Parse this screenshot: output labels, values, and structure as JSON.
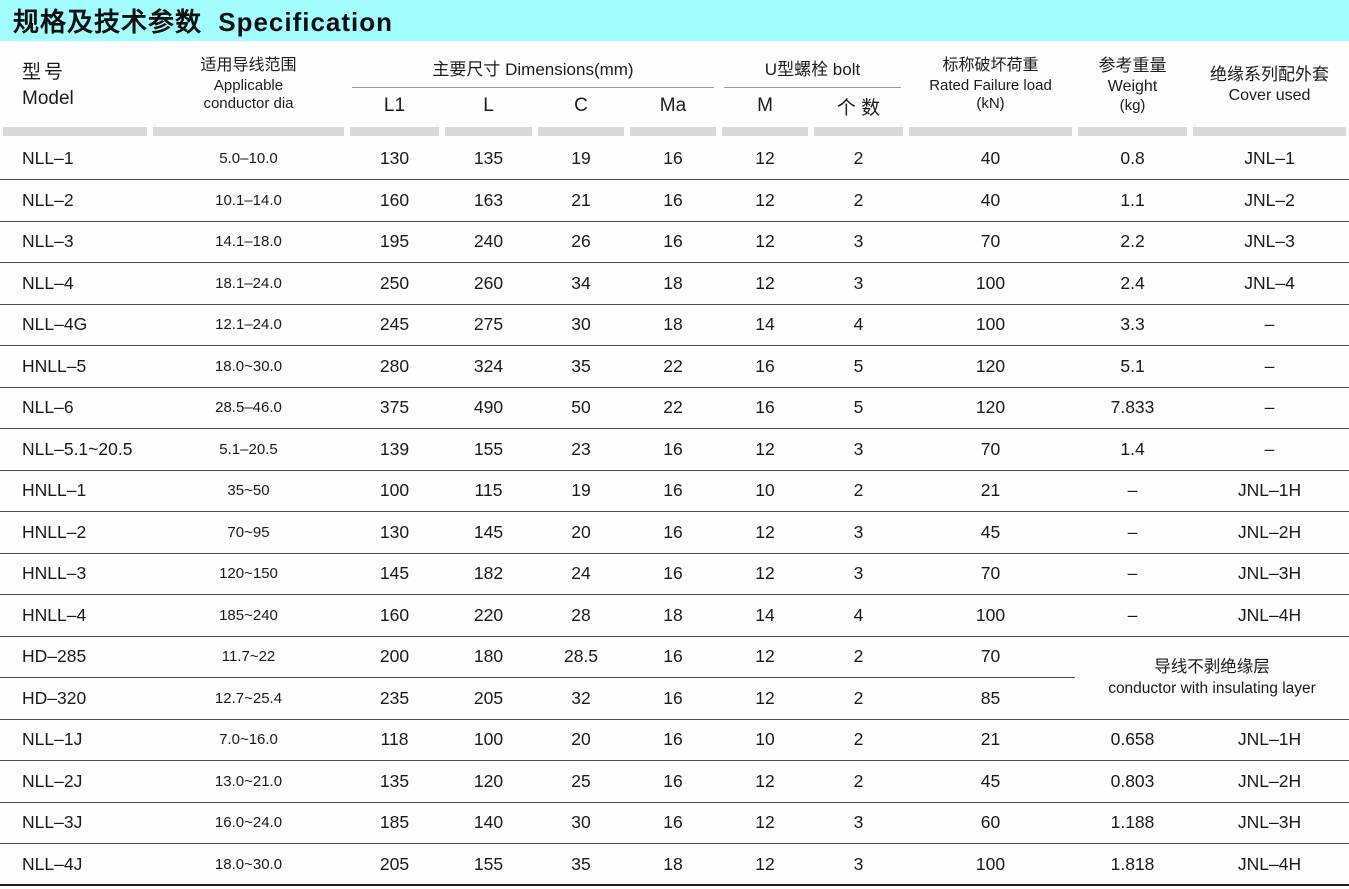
{
  "title": "规格及技术参数 Specification",
  "colors": {
    "title_bg": "#a2fefe",
    "separator_bar": "#d9d9d9",
    "row_line": "#4a4a4a",
    "text": "#1c1c1c"
  },
  "header": {
    "model": {
      "zh": "型号",
      "en": "Model"
    },
    "conductor": {
      "zh": "适用导线范围",
      "en1": "Applicable",
      "en2": "conductor dia"
    },
    "dimensions": {
      "label": "主要尺寸 Dimensions(mm)",
      "sub1": "L1",
      "sub2": "L",
      "sub3": "C",
      "sub4": "Ma"
    },
    "bolt": {
      "label": "U型螺栓 bolt",
      "sub1": "M",
      "sub2": "个 数"
    },
    "load": {
      "zh": "标称破坏荷重",
      "en": "Rated Failure load",
      "unit": "(kN)"
    },
    "weight": {
      "zh": "参考重量",
      "en": "Weight",
      "unit": "(kg)"
    },
    "cover": {
      "zh": "绝缘系列配外套",
      "en": "Cover used"
    }
  },
  "merged_note": {
    "zh": "导线不剥绝缘层",
    "en": "conductor with insulating layer"
  },
  "rows": [
    {
      "model": "NLL–1",
      "dia": "5.0–10.0",
      "l1": "130",
      "l": "135",
      "c": "19",
      "ma": "16",
      "m": "12",
      "qty": "2",
      "load": "40",
      "weight": "0.8",
      "cover": "JNL–1"
    },
    {
      "model": "NLL–2",
      "dia": "10.1–14.0",
      "l1": "160",
      "l": "163",
      "c": "21",
      "ma": "16",
      "m": "12",
      "qty": "2",
      "load": "40",
      "weight": "1.1",
      "cover": "JNL–2"
    },
    {
      "model": "NLL–3",
      "dia": "14.1–18.0",
      "l1": "195",
      "l": "240",
      "c": "26",
      "ma": "16",
      "m": "12",
      "qty": "3",
      "load": "70",
      "weight": "2.2",
      "cover": "JNL–3"
    },
    {
      "model": "NLL–4",
      "dia": "18.1–24.0",
      "l1": "250",
      "l": "260",
      "c": "34",
      "ma": "18",
      "m": "12",
      "qty": "3",
      "load": "100",
      "weight": "2.4",
      "cover": "JNL–4"
    },
    {
      "model": "NLL–4G",
      "dia": "12.1–24.0",
      "l1": "245",
      "l": "275",
      "c": "30",
      "ma": "18",
      "m": "14",
      "qty": "4",
      "load": "100",
      "weight": "3.3",
      "cover": "–"
    },
    {
      "model": "HNLL–5",
      "dia": "18.0~30.0",
      "l1": "280",
      "l": "324",
      "c": "35",
      "ma": "22",
      "m": "16",
      "qty": "5",
      "load": "120",
      "weight": "5.1",
      "cover": "–"
    },
    {
      "model": "NLL–6",
      "dia": "28.5–46.0",
      "l1": "375",
      "l": "490",
      "c": "50",
      "ma": "22",
      "m": "16",
      "qty": "5",
      "load": "120",
      "weight": "7.833",
      "cover": "–"
    },
    {
      "model": "NLL–5.1~20.5",
      "dia": "5.1–20.5",
      "l1": "139",
      "l": "155",
      "c": "23",
      "ma": "16",
      "m": "12",
      "qty": "3",
      "load": "70",
      "weight": "1.4",
      "cover": "–"
    },
    {
      "model": "HNLL–1",
      "dia": "35~50",
      "l1": "100",
      "l": "115",
      "c": "19",
      "ma": "16",
      "m": "10",
      "qty": "2",
      "load": "21",
      "weight": "–",
      "cover": "JNL–1H"
    },
    {
      "model": "HNLL–2",
      "dia": "70~95",
      "l1": "130",
      "l": "145",
      "c": "20",
      "ma": "16",
      "m": "12",
      "qty": "3",
      "load": "45",
      "weight": "–",
      "cover": "JNL–2H"
    },
    {
      "model": "HNLL–3",
      "dia": "120~150",
      "l1": "145",
      "l": "182",
      "c": "24",
      "ma": "16",
      "m": "12",
      "qty": "3",
      "load": "70",
      "weight": "–",
      "cover": "JNL–3H"
    },
    {
      "model": "HNLL–4",
      "dia": "185~240",
      "l1": "160",
      "l": "220",
      "c": "28",
      "ma": "18",
      "m": "14",
      "qty": "4",
      "load": "100",
      "weight": "–",
      "cover": "JNL–4H"
    },
    {
      "model": "HD–285",
      "dia": "11.7~22",
      "l1": "200",
      "l": "180",
      "c": "28.5",
      "ma": "16",
      "m": "12",
      "qty": "2",
      "load": "70",
      "note_span": true
    },
    {
      "model": "HD–320",
      "dia": "12.7~25.4",
      "l1": "235",
      "l": "205",
      "c": "32",
      "ma": "16",
      "m": "12",
      "qty": "2",
      "load": "85",
      "note_cont": true
    },
    {
      "model": "NLL–1J",
      "dia": "7.0~16.0",
      "l1": "118",
      "l": "100",
      "c": "20",
      "ma": "16",
      "m": "10",
      "qty": "2",
      "load": "21",
      "weight": "0.658",
      "cover": "JNL–1H"
    },
    {
      "model": "NLL–2J",
      "dia": "13.0~21.0",
      "l1": "135",
      "l": "120",
      "c": "25",
      "ma": "16",
      "m": "12",
      "qty": "2",
      "load": "45",
      "weight": "0.803",
      "cover": "JNL–2H"
    },
    {
      "model": "NLL–3J",
      "dia": "16.0~24.0",
      "l1": "185",
      "l": "140",
      "c": "30",
      "ma": "16",
      "m": "12",
      "qty": "3",
      "load": "60",
      "weight": "1.188",
      "cover": "JNL–3H"
    },
    {
      "model": "NLL–4J",
      "dia": "18.0~30.0",
      "l1": "205",
      "l": "155",
      "c": "35",
      "ma": "18",
      "m": "12",
      "qty": "3",
      "load": "100",
      "weight": "1.818",
      "cover": "JNL–4H"
    }
  ]
}
